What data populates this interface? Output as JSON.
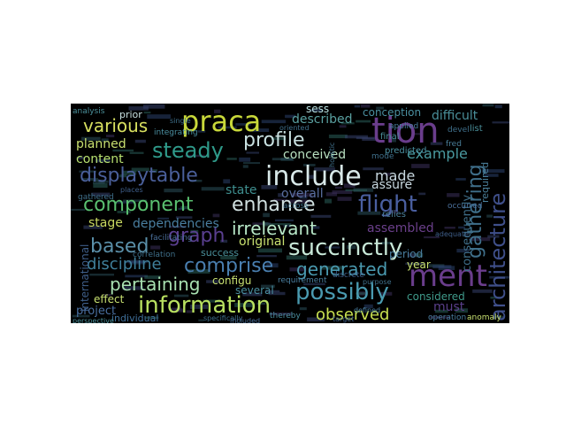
{
  "words": [
    {
      "text": "praca",
      "color": "#c8d83a"
    },
    {
      "text": "tion",
      "color": "#6a3d8c"
    },
    {
      "text": "include",
      "color": "#d8e8e8"
    },
    {
      "text": "ment",
      "color": "#6a3d8c"
    },
    {
      "text": "architecture",
      "color": "#3f4f8a"
    },
    {
      "text": "gathering",
      "color": "#3f6f8a"
    },
    {
      "text": "steady",
      "color": "#2f9a8a"
    },
    {
      "text": "profile",
      "color": "#c8e0e0"
    },
    {
      "text": "various",
      "color": "#d8e060"
    },
    {
      "text": "displaytable",
      "color": "#4a5f9a"
    },
    {
      "text": "component",
      "color": "#5ac070"
    },
    {
      "text": "enhance",
      "color": "#d0e0e0"
    },
    {
      "text": "flight",
      "color": "#4a5fa0"
    },
    {
      "text": "irrelevant",
      "color": "#b8e8c8"
    },
    {
      "text": "succinctly",
      "color": "#c8e8d8"
    },
    {
      "text": "graph",
      "color": "#5a3f90"
    },
    {
      "text": "based",
      "color": "#5a8fa8"
    },
    {
      "text": "comprise",
      "color": "#4a7fb0"
    },
    {
      "text": "generated",
      "color": "#4a9ab0"
    },
    {
      "text": "possibly",
      "color": "#4a9ab0"
    },
    {
      "text": "information",
      "color": "#b8e060"
    },
    {
      "text": "pertaining",
      "color": "#a8e0b0"
    },
    {
      "text": "discipline",
      "color": "#3f7f9a"
    },
    {
      "text": "observed",
      "color": "#c8e050"
    },
    {
      "text": "made",
      "color": "#c8d8e0"
    },
    {
      "text": "example",
      "color": "#4a9aa0"
    },
    {
      "text": "difficult",
      "color": "#4a8f9a"
    },
    {
      "text": "consequently",
      "color": "#3f6f8a"
    },
    {
      "text": "international",
      "color": "#3f5f8a"
    },
    {
      "text": "dependencies",
      "color": "#4a7fa0"
    },
    {
      "text": "original",
      "color": "#c8e070"
    },
    {
      "text": "assembled",
      "color": "#6a3f8a"
    },
    {
      "text": "described",
      "color": "#5aa0a0"
    },
    {
      "text": "conceived",
      "color": "#b8e0c0"
    },
    {
      "text": "planned",
      "color": "#c8e070"
    },
    {
      "text": "content",
      "color": "#b8e070"
    },
    {
      "text": "overall",
      "color": "#5a6fa0"
    },
    {
      "text": "state",
      "color": "#3f8f8f"
    },
    {
      "text": "stage",
      "color": "#c8d860"
    },
    {
      "text": "assure",
      "color": "#c8d8e0"
    },
    {
      "text": "must",
      "color": "#5a3f8a"
    },
    {
      "text": "effect",
      "color": "#c8e070"
    },
    {
      "text": "project",
      "color": "#4a6fa0"
    },
    {
      "text": "several",
      "color": "#4a8fa0"
    },
    {
      "text": "considered",
      "color": "#3f9a8a"
    },
    {
      "text": "individual",
      "color": "#3f6f9a"
    },
    {
      "text": "configu",
      "color": "#c8e070"
    },
    {
      "text": "success",
      "color": "#4a8f9a"
    },
    {
      "text": "period",
      "color": "#4a7fa0"
    },
    {
      "text": "year",
      "color": "#c8e070"
    },
    {
      "text": "required",
      "color": "#4a7f9a"
    },
    {
      "text": "conception",
      "color": "#4a8fa0"
    },
    {
      "text": "sess",
      "color": "#b8e0e0"
    },
    {
      "text": "prior",
      "color": "#c8e0e0"
    },
    {
      "text": "analysis",
      "color": "#4a8f9a"
    },
    {
      "text": "integrating",
      "color": "#4a8fa0"
    },
    {
      "text": "facilitating",
      "color": "#4a6f9a"
    },
    {
      "text": "thereby",
      "color": "#4a8fa0"
    },
    {
      "text": "specifically",
      "color": "#3f6f8a"
    },
    {
      "text": "perspective",
      "color": "#4a8f9a"
    },
    {
      "text": "predicted",
      "color": "#4a8fa0"
    },
    {
      "text": "gathered",
      "color": "#3f6f8a"
    },
    {
      "text": "included",
      "color": "#4a6f9a"
    },
    {
      "text": "defined",
      "color": "#4a7fa0"
    },
    {
      "text": "operation",
      "color": "#4a7fa0"
    },
    {
      "text": "anomaly",
      "color": "#c8e070"
    },
    {
      "text": "relies",
      "color": "#4a7f9a"
    },
    {
      "text": "occurred",
      "color": "#4a6f9a"
    },
    {
      "text": "final",
      "color": "#4a8f9a"
    },
    {
      "text": "applied",
      "color": "#4a7fa0"
    },
    {
      "text": "list",
      "color": "#4a8f9a"
    },
    {
      "text": "devel",
      "color": "#3f6f8a"
    },
    {
      "text": "discrete",
      "color": "#3f5f8a"
    },
    {
      "text": "correlation",
      "color": "#3f6f8a"
    },
    {
      "text": "jerry",
      "color": "#4a8f9a"
    },
    {
      "text": "requirement",
      "color": "#4a7fa0"
    },
    {
      "text": "fred",
      "color": "#4a7f9a"
    },
    {
      "text": "holistic",
      "color": "#3f6f8a"
    },
    {
      "text": "adequate",
      "color": "#3f5f8a"
    },
    {
      "text": "across",
      "color": "#3f6f8a"
    },
    {
      "text": "mode",
      "color": "#3f6f8a"
    },
    {
      "text": "places",
      "color": "#3f5f8a"
    },
    {
      "text": "oriented",
      "color": "#3f6f8a"
    },
    {
      "text": "single",
      "color": "#3f6f8a"
    },
    {
      "text": "target",
      "color": "#3f5f8a"
    },
    {
      "text": "purpose",
      "color": "#3f6f8a"
    }
  ]
}
